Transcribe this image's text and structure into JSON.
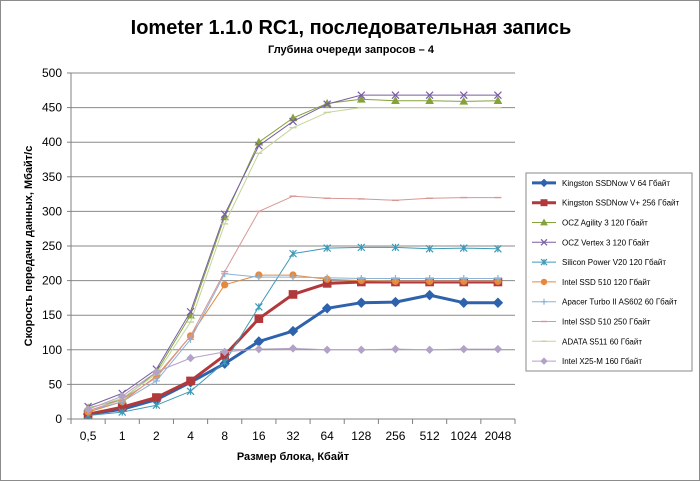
{
  "chart_data": {
    "type": "line",
    "title": "Iometer 1.1.0 RC1, последовательная запись",
    "subtitle": "Глубина очереди запросов – 4",
    "xlabel": "Размер блока, Кбайт",
    "ylabel": "Скорость передачи данных, Мбайт/с",
    "categories": [
      "0,5",
      "1",
      "2",
      "4",
      "8",
      "16",
      "32",
      "64",
      "128",
      "256",
      "512",
      "1024",
      "2048"
    ],
    "ylim": [
      0,
      500
    ],
    "yticks": [
      0,
      50,
      100,
      150,
      200,
      250,
      300,
      350,
      400,
      450,
      500
    ],
    "grid": "horizontal",
    "legend": "right",
    "series": [
      {
        "name": "Kingston SSDNow V 64 Гбайт",
        "color": "#2e62ad",
        "marker": "diamond",
        "width": 3,
        "values": [
          7,
          14,
          28,
          53,
          80,
          112,
          127,
          160,
          168,
          169,
          179,
          168,
          168
        ]
      },
      {
        "name": "Kingston SSDNow V+ 256 Гбайт",
        "color": "#b2393b",
        "marker": "square",
        "width": 3,
        "values": [
          7,
          17,
          31,
          55,
          92,
          145,
          180,
          196,
          198,
          198,
          198,
          198,
          198
        ]
      },
      {
        "name": "OCZ Agility 3 120 Гбайт",
        "color": "#84a33b",
        "marker": "triangle",
        "width": 1,
        "values": [
          16,
          28,
          68,
          150,
          292,
          400,
          435,
          456,
          462,
          460,
          460,
          459,
          460
        ]
      },
      {
        "name": "OCZ Vertex 3 120 Гбайт",
        "color": "#7a5da4",
        "marker": "x",
        "width": 1,
        "values": [
          18,
          37,
          72,
          155,
          296,
          395,
          430,
          455,
          468,
          468,
          468,
          468,
          468
        ]
      },
      {
        "name": "Silicon Power V20 120 Гбайт",
        "color": "#3e9ab8",
        "marker": "star",
        "width": 1,
        "values": [
          5,
          10,
          20,
          40,
          82,
          162,
          239,
          247,
          248,
          248,
          246,
          247,
          246
        ]
      },
      {
        "name": "Intel SSD 510 120 Гбайт",
        "color": "#e6893d",
        "marker": "circle",
        "width": 1,
        "values": [
          10,
          25,
          62,
          120,
          194,
          208,
          208,
          202,
          200,
          199,
          199,
          199,
          199
        ]
      },
      {
        "name": "Apacer Turbo II AS602 60 Гбайт",
        "color": "#8ab3d6",
        "marker": "plus",
        "width": 1,
        "values": [
          12,
          25,
          55,
          115,
          210,
          205,
          205,
          204,
          203,
          203,
          203,
          203,
          203
        ]
      },
      {
        "name": "Intel SSD 510 250 Гбайт",
        "color": "#d99694",
        "marker": "dash",
        "width": 1,
        "values": [
          12,
          28,
          60,
          120,
          213,
          300,
          322,
          319,
          318,
          316,
          319,
          320,
          320
        ]
      },
      {
        "name": "ADATA S511 60 Гбайт",
        "color": "#c3d69b",
        "marker": "dash",
        "width": 1,
        "values": [
          15,
          30,
          65,
          140,
          282,
          384,
          421,
          443,
          450,
          450,
          450,
          450,
          450
        ]
      },
      {
        "name": "Intel X25-M 160 Гбайт",
        "color": "#b3a2c7",
        "marker": "diamond",
        "width": 1,
        "values": [
          14,
          33,
          68,
          88,
          97,
          101,
          102,
          100,
          100,
          101,
          100,
          101,
          101
        ]
      }
    ]
  }
}
